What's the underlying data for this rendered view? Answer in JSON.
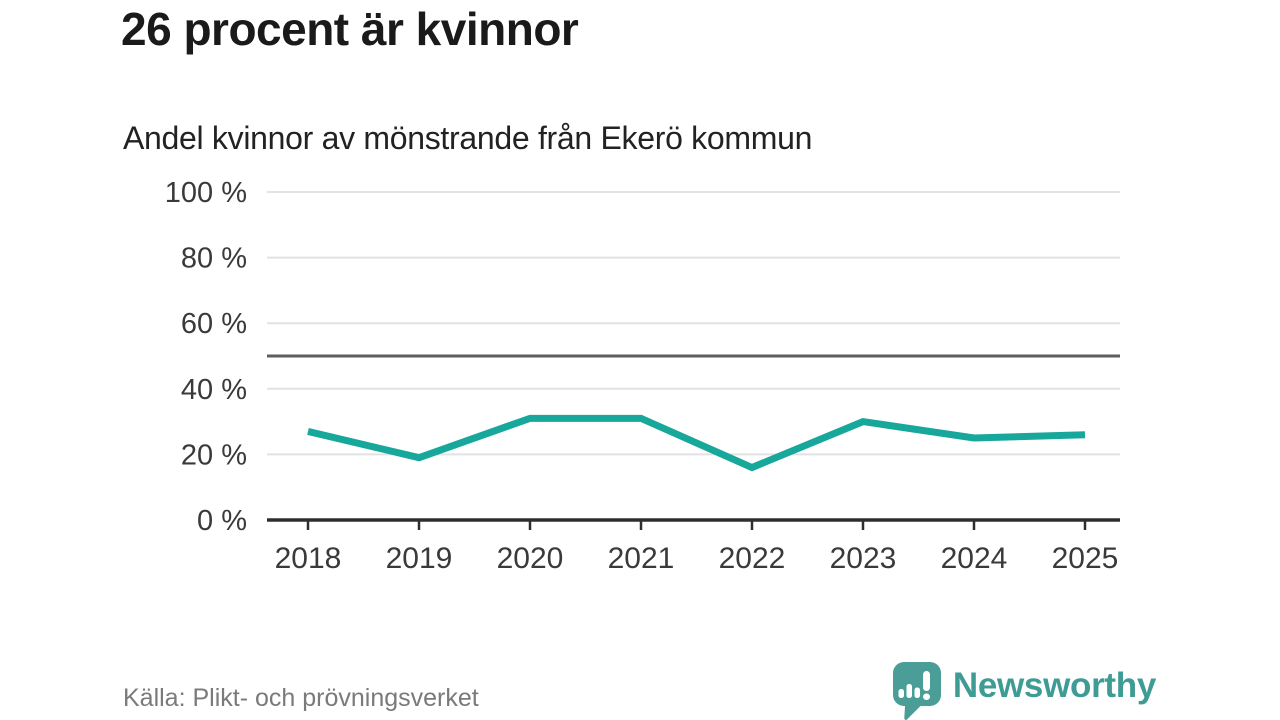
{
  "header": {
    "title": "26 procent är kvinnor",
    "subtitle": "Andel kvinnor av mönstrande från Ekerö kommun"
  },
  "chart_data": {
    "type": "line",
    "title": "26 procent är kvinnor",
    "subtitle": "Andel kvinnor av mönstrande från Ekerö kommun",
    "categories": [
      "2018",
      "2019",
      "2020",
      "2021",
      "2022",
      "2023",
      "2024",
      "2025"
    ],
    "series": [
      {
        "name": "Andel kvinnor av mönstrande",
        "values": [
          27,
          19,
          31,
          31,
          16,
          30,
          25,
          26
        ]
      }
    ],
    "unit": "%",
    "xlabel": "",
    "ylabel": "",
    "ylim": [
      0,
      100
    ],
    "yticks": [
      0,
      20,
      40,
      60,
      80,
      100
    ],
    "ytick_labels": [
      "0 %",
      "20 %",
      "40 %",
      "60 %",
      "80 %",
      "100 %"
    ],
    "reference_line": 50,
    "grid": "horizontal",
    "legend": "none"
  },
  "footer": {
    "source": "Källa: Plikt- och prövningsverket",
    "logo_text": "Newsworthy"
  },
  "colors": {
    "line": "#17a79b",
    "reference_line": "#5d5d5d",
    "grid": "#e2e2e2",
    "axis": "#2e2e2e",
    "title_text": "#1a1a1a",
    "tick_text": "#3a3a3a",
    "source_text": "#7a7a7a",
    "logo_teal": "#3f9c95",
    "logo_icon_fill": "#4a9e97"
  }
}
